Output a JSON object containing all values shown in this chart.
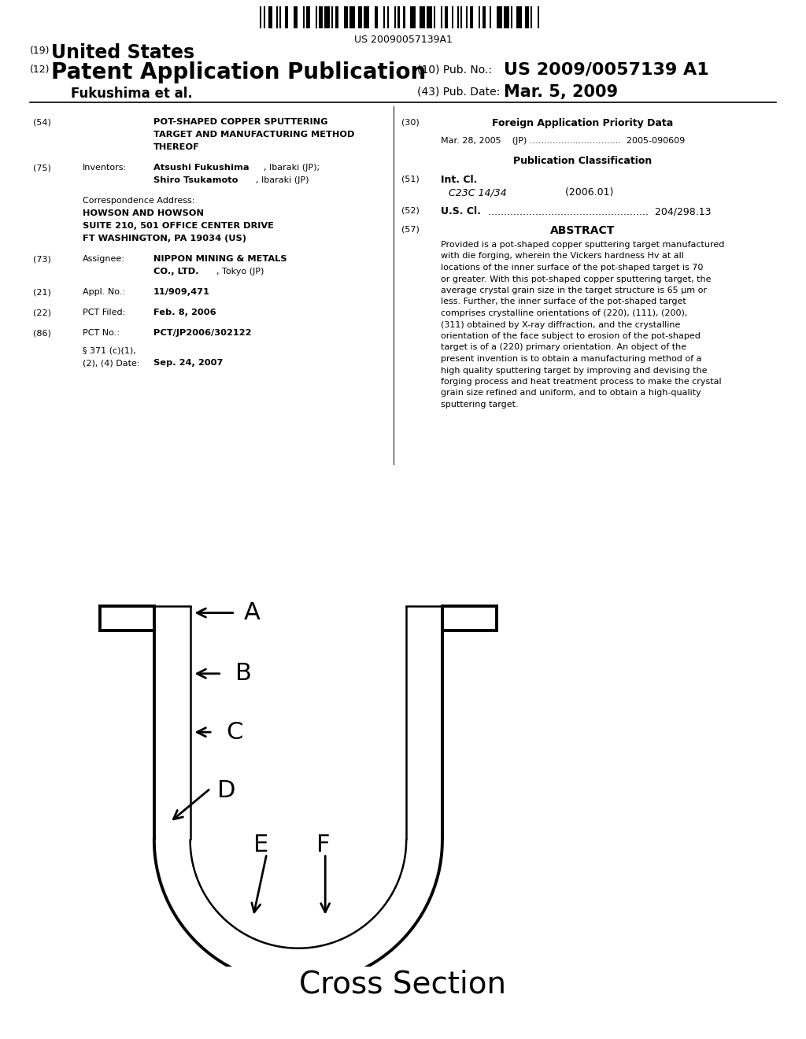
{
  "background_color": "#ffffff",
  "barcode_text": "US 20090057139A1",
  "cross_section_label": "Cross Section",
  "header": {
    "tag19": "(19)",
    "text19": "United States",
    "tag12": "(12)",
    "text12": "Patent Application Publication",
    "tag10": "(10) Pub. No.:",
    "text10": "US 2009/0057139 A1",
    "author": "Fukushima et al.",
    "tag43": "(43) Pub. Date:",
    "text43": "Mar. 5, 2009"
  },
  "left_col": {
    "tag54": "(54)",
    "title_lines": [
      "POT-SHAPED COPPER SPUTTERING",
      "TARGET AND MANUFACTURING METHOD",
      "THEREOF"
    ],
    "tag75": "(75)",
    "inventors_label": "Inventors:",
    "inventor1_bold": "Atsushi Fukushima",
    "inventor1_rest": ", Ibaraki (JP);",
    "inventor2_bold": "Shiro Tsukamoto",
    "inventor2_rest": ", Ibaraki (JP)",
    "corr_label": "Correspondence Address:",
    "corr_lines_bold": [
      "HOWSON AND HOWSON",
      "SUITE 210, 501 OFFICE CENTER DRIVE",
      "FT WASHINGTON, PA 19034 (US)"
    ],
    "tag73": "(73)",
    "assignee_label": "Assignee:",
    "assignee_bold": "NIPPON MINING & METALS",
    "assignee_bold2": "CO., LTD.",
    "assignee_rest": ", Tokyo (JP)",
    "tag21": "(21)",
    "appl_label": "Appl. No.:",
    "appl_bold": "11/909,471",
    "tag22": "(22)",
    "pct_filed_label": "PCT Filed:",
    "pct_filed_bold": "Feb. 8, 2006",
    "tag86": "(86)",
    "pct_no_label": "PCT No.:",
    "pct_no_bold": "PCT/JP2006/302122",
    "sec371_label1": "§ 371 (c)(1),",
    "sec371_label2": "(2), (4) Date:",
    "sec371_bold": "Sep. 24, 2007"
  },
  "right_col": {
    "tag30": "(30)",
    "foreign_title": "Foreign Application Priority Data",
    "foreign_entry": "Mar. 28, 2005    (JP) ................................  2005-090609",
    "pub_class_title": "Publication Classification",
    "tag51": "(51)",
    "intcl_bold": "Int. Cl.",
    "intcl_italic": "C23C 14/34",
    "intcl_year": "(2006.01)",
    "tag52": "(52)",
    "uscl_bold": "U.S. Cl.",
    "uscl_dots": "...................................................",
    "uscl_num": "204/298.13",
    "tag57": "(57)",
    "abstract_title": "ABSTRACT",
    "abstract_text": "Provided is a pot-shaped copper sputtering target manufactured with die forging, wherein the Vickers hardness Hv at all locations of the inner surface of the pot-shaped target is 70 or greater. With this pot-shaped copper sputtering target, the average crystal grain size in the target structure is 65 μm or less. Further, the inner surface of the pot-shaped target comprises crystalline orientations of (220), (111), (200), (311) obtained by X-ray diffraction, and the crystalline orientation of the face subject to erosion of the pot-shaped target is of a (220) primary orientation. An object of the present invention is to obtain a manufacturing method of a high quality sputtering target by improving and devising the forging process and heat treatment process to make the crystal grain size refined and uniform, and to obtain a high-quality sputtering target."
  }
}
